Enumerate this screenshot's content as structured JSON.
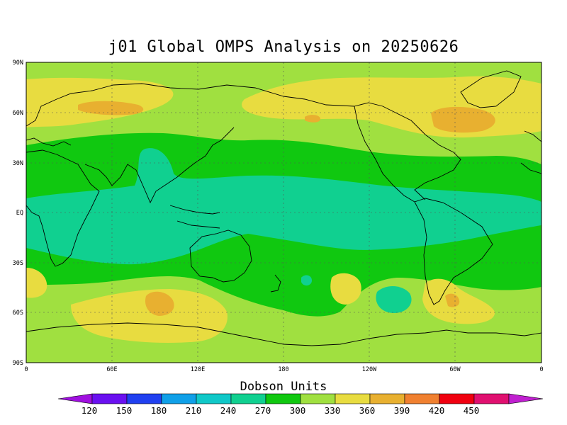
{
  "title": "j01 Global OMPS Analysis on 20250626",
  "colorbar": {
    "title": "Dobson Units",
    "labels": [
      "120",
      "150",
      "180",
      "210",
      "240",
      "270",
      "300",
      "330",
      "360",
      "390",
      "420",
      "450"
    ],
    "colors": [
      "#a010e0",
      "#6a10f0",
      "#2040f0",
      "#10a0e8",
      "#10c8c8",
      "#10d090",
      "#10c810",
      "#a0e040",
      "#e8dc40",
      "#e8b030",
      "#f08030",
      "#f00010",
      "#e01070",
      "#c020d0"
    ]
  },
  "axes": {
    "y_ticks": [
      "90N",
      "60N",
      "30N",
      "EQ",
      "30S",
      "60S",
      "90S"
    ],
    "x_ticks": [
      "0",
      "60E",
      "120E",
      "180",
      "120W",
      "60W",
      "0"
    ]
  },
  "levels": {
    "c270": "#10d090",
    "c300": "#10c810",
    "c330": "#a0e040",
    "c360": "#e8dc40",
    "c390": "#e8b030"
  }
}
